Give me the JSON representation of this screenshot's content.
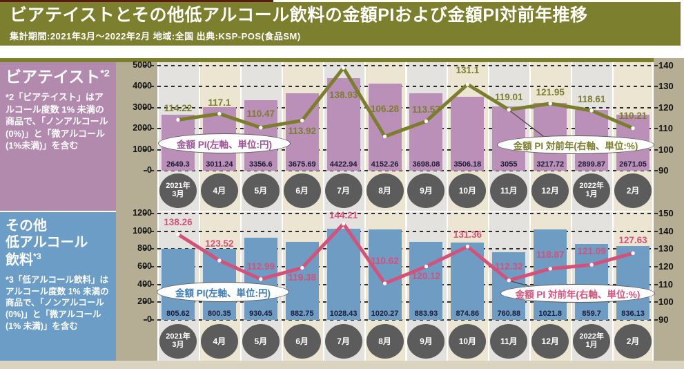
{
  "header": {
    "title": "ビアテイストとその他低アルコール飲料の金額PIおよび金額PI対前年推移",
    "subtitle": "集計期間:2021年3月〜2022年2月  地域:全国  出典:KSP-POS(食品SM)"
  },
  "palette": {
    "olive": "#7c7f2d",
    "maroon": "#571b0f",
    "tan": "#b6ae94",
    "bottom_strip": "#d9d3bf",
    "stripe_gray": "#e4e2de",
    "stripe_cream": "#ece5d2",
    "circle_bg": "#5c5c5c",
    "grid": "#2b2b2b",
    "bar_value_text": "#1c1c38"
  },
  "chart_data": [
    {
      "type": "bar+line",
      "title": "ビアテイスト*2",
      "sidebar_heading": "ビアテイスト",
      "sidebar_sup": "*2",
      "sidebar_note": "*2「ビアテイスト」はアルコール度数 1% 未満の商品で、「ノンアルコール(0%)」と「微アルコール(1%未満)」を含む",
      "categories": [
        "2021年\n3月",
        "4月",
        "5月",
        "6月",
        "7月",
        "8月",
        "9月",
        "10月",
        "11月",
        "12月",
        "2022年\n1月",
        "2月"
      ],
      "series": [
        {
          "name": "金額 PI(左軸、単位:円)",
          "type": "bar",
          "axis": "left",
          "values": [
            2649.3,
            3011.24,
            3356.6,
            3675.69,
            4422.94,
            4152.26,
            3698.08,
            3506.18,
            3055,
            3217.72,
            2899.87,
            2671.05
          ]
        },
        {
          "name": "金額 PI 対前年(右軸、単位:%)",
          "type": "line",
          "axis": "right",
          "values": [
            114.22,
            117.1,
            110.47,
            113.92,
            138.93,
            106.28,
            113.57,
            131.1,
            119.01,
            121.95,
            118.61,
            110.21
          ]
        }
      ],
      "left_axis": {
        "min": 0,
        "max": 5000,
        "ticks": [
          0,
          1000,
          2000,
          3000,
          4000,
          5000
        ]
      },
      "right_axis": {
        "min": 90,
        "max": 140,
        "ticks": [
          90,
          100,
          110,
          120,
          130,
          140
        ]
      },
      "grid": true,
      "colors": {
        "bar": "#bb90b8",
        "line": "#7b7e2c",
        "sidebar": "#b28aae",
        "bar_legend_text": "#9c5296",
        "line_legend_text": "#7b7e2c"
      },
      "line_label_dy": [
        -16,
        -16,
        -20,
        16,
        40,
        -40,
        -16,
        -20,
        -18,
        -16,
        -16,
        -18
      ]
    },
    {
      "type": "bar+line",
      "title": "その他低アルコール飲料*3",
      "sidebar_heading": "その他\n低アルコール\n飲料",
      "sidebar_sup": "*3",
      "sidebar_note": "*3「低アルコール飲料」はアルコール度数 1% 未満の商品で、「ノンアルコール (0%)」と「微アルコール(1% 未満)」を含む",
      "categories": [
        "2021年\n3月",
        "4月",
        "5月",
        "6月",
        "7月",
        "8月",
        "9月",
        "10月",
        "11月",
        "12月",
        "2022年\n1月",
        "2月"
      ],
      "series": [
        {
          "name": "金額 PI(左軸、単位:円)",
          "type": "bar",
          "axis": "left",
          "values": [
            805.62,
            800.35,
            930.45,
            882.75,
            1028.43,
            1020.27,
            883.93,
            874.86,
            760.88,
            1021.8,
            859.7,
            836.13
          ]
        },
        {
          "name": "金額 PI 対前年(右軸、単位:%)",
          "type": "line",
          "axis": "right",
          "values": [
            138.26,
            123.52,
            112.99,
            119.38,
            144.21,
            110.62,
            120.12,
            131.36,
            112.32,
            118.87,
            121.09,
            127.63
          ]
        }
      ],
      "left_axis": {
        "min": 0,
        "max": 1200,
        "ticks": [
          0,
          200,
          400,
          600,
          800,
          1000,
          1200
        ]
      },
      "right_axis": {
        "min": 90,
        "max": 150,
        "ticks": [
          90,
          100,
          110,
          120,
          130,
          140,
          150
        ]
      },
      "grid": true,
      "colors": {
        "bar": "#6f9cc3",
        "line": "#d4517a",
        "sidebar": "#6c9dc6",
        "bar_legend_text": "#3d7cb5",
        "line_legend_text": "#d4517a"
      },
      "line_label_dy": [
        -17,
        -24,
        -18,
        14,
        -12,
        -32,
        14,
        -17,
        -20,
        -20,
        -19,
        -18
      ]
    }
  ]
}
